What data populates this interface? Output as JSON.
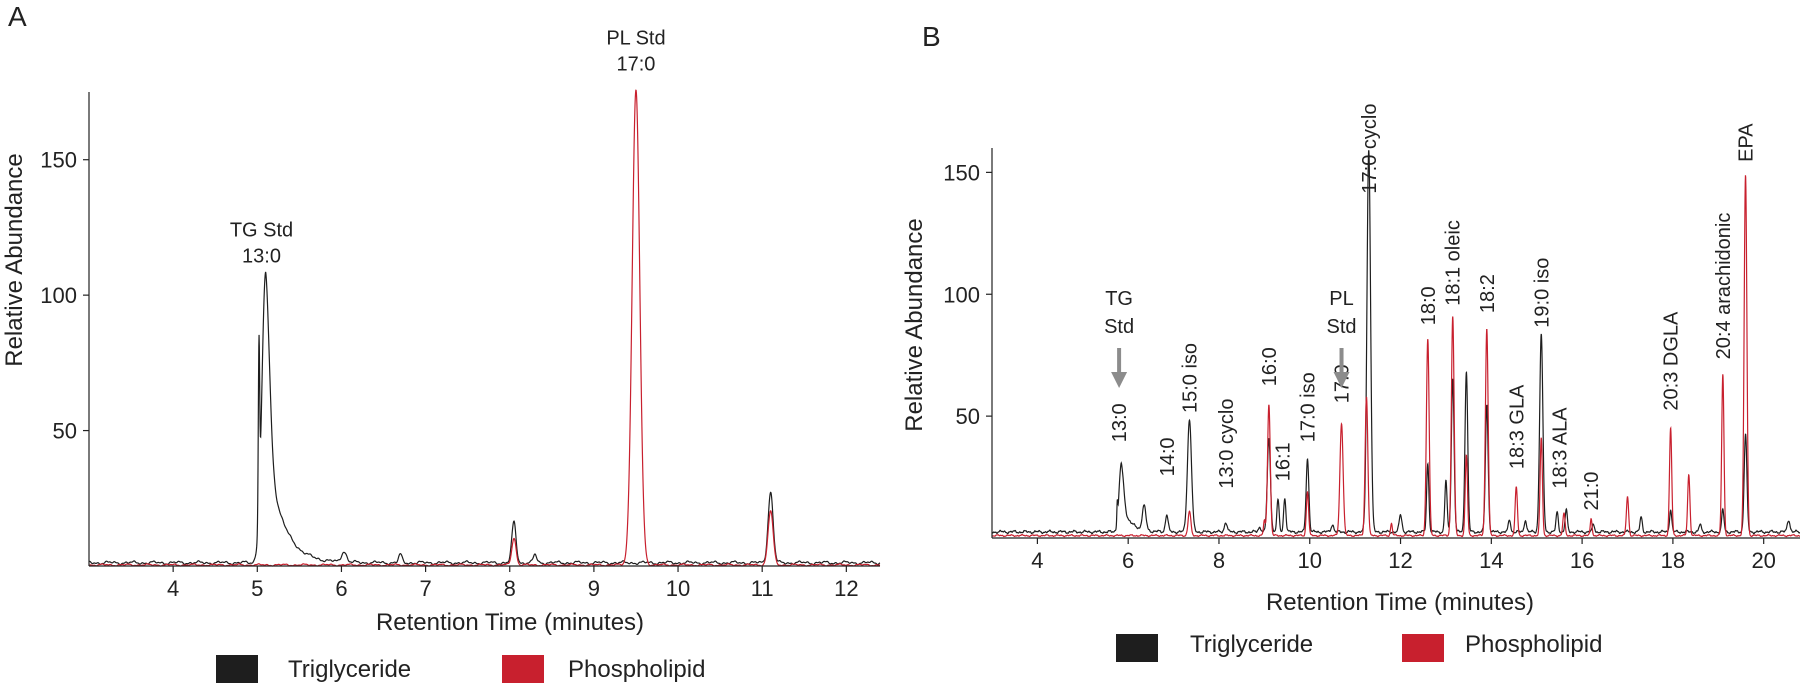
{
  "colors": {
    "triglyceride": "#1e1e1e",
    "phospholipid": "#c8202e",
    "axis": "#222222",
    "arrow": "#8c8c8c"
  },
  "chart_data": [
    {
      "panel": "A",
      "type": "line",
      "xlabel": "Retention Time (minutes)",
      "ylabel": "Relative Abundance",
      "xlim": [
        3.0,
        12.4
      ],
      "ylim": [
        0,
        175
      ],
      "xticks": [
        4,
        5,
        6,
        7,
        8,
        9,
        10,
        11,
        12
      ],
      "yticks": [
        50,
        100,
        150
      ],
      "legend": [
        "Triglyceride",
        "Phospholipid"
      ],
      "annotations": [
        {
          "lines": [
            "TG Std",
            "13:0"
          ],
          "x": 5.05,
          "y": 112
        },
        {
          "lines": [
            "PL Std",
            "17:0"
          ],
          "x": 9.5,
          "y": 183
        }
      ],
      "baseline": {
        "triglyceride": 1.2,
        "phospholipid": 0.4
      },
      "series": [
        {
          "name": "Triglyceride",
          "key": "triglyceride",
          "peaks": [
            {
              "x": 5.02,
              "h": 62,
              "w": 0.008
            },
            {
              "x": 5.1,
              "h": 107,
              "w": 0.045,
              "tail": 0.18
            },
            {
              "x": 6.03,
              "h": 4,
              "w": 0.03
            },
            {
              "x": 6.7,
              "h": 3,
              "w": 0.02
            },
            {
              "x": 8.05,
              "h": 15,
              "w": 0.025
            },
            {
              "x": 8.3,
              "h": 3,
              "w": 0.02
            },
            {
              "x": 11.1,
              "h": 26,
              "w": 0.03
            }
          ]
        },
        {
          "name": "Phospholipid",
          "key": "phospholipid",
          "peaks": [
            {
              "x": 8.05,
              "h": 10,
              "w": 0.025
            },
            {
              "x": 9.5,
              "h": 175,
              "w": 0.045
            },
            {
              "x": 11.1,
              "h": 20,
              "w": 0.03
            }
          ]
        }
      ]
    },
    {
      "panel": "B",
      "type": "line",
      "xlabel": "Retention Time (minutes)",
      "ylabel": "Relative Abundance",
      "xlim": [
        3.0,
        20.8
      ],
      "ylim": [
        0,
        160
      ],
      "xticks": [
        4,
        6,
        8,
        10,
        12,
        14,
        16,
        18,
        20
      ],
      "yticks": [
        50,
        100,
        150
      ],
      "legend": [
        "Triglyceride",
        "Phospholipid"
      ],
      "std_labels": [
        {
          "lines": [
            "TG",
            "Std"
          ],
          "x": 5.8
        },
        {
          "lines": [
            "PL",
            "Std"
          ],
          "x": 10.7
        }
      ],
      "peak_labels": [
        {
          "text": "13:0",
          "x": 5.8,
          "y": 36
        },
        {
          "text": "14:0",
          "x": 6.85,
          "y": 22
        },
        {
          "text": "15:0 iso",
          "x": 7.35,
          "y": 48
        },
        {
          "text": "13:0 cyclo",
          "x": 8.15,
          "y": 17
        },
        {
          "text": "16:0",
          "x": 9.1,
          "y": 59
        },
        {
          "text": "16:1",
          "x": 9.4,
          "y": 20
        },
        {
          "text": "17:0 iso",
          "x": 9.95,
          "y": 36
        },
        {
          "text": "17:0",
          "x": 10.7,
          "y": 52
        },
        {
          "text": "17:0 cyclo",
          "x": 11.3,
          "y": 138
        },
        {
          "text": "18:0",
          "x": 12.6,
          "y": 84
        },
        {
          "text": "18:1 oleic",
          "x": 13.15,
          "y": 92
        },
        {
          "text": "18:2",
          "x": 13.9,
          "y": 89
        },
        {
          "text": "18:3 GLA",
          "x": 14.55,
          "y": 25
        },
        {
          "text": "19:0 iso",
          "x": 15.1,
          "y": 83
        },
        {
          "text": "18:3 ALA",
          "x": 15.5,
          "y": 17
        },
        {
          "text": "21:0",
          "x": 16.2,
          "y": 8
        },
        {
          "text": "20:3 DGLA",
          "x": 17.95,
          "y": 49
        },
        {
          "text": "20:4 arachidonic",
          "x": 19.1,
          "y": 70
        },
        {
          "text": "EPA",
          "x": 19.6,
          "y": 151
        }
      ],
      "baseline": {
        "triglyceride": 2.5,
        "phospholipid": 1.0
      },
      "series": [
        {
          "name": "Triglyceride",
          "key": "triglyceride",
          "peaks": [
            {
              "x": 5.76,
              "h": 8,
              "w": 0.01
            },
            {
              "x": 5.85,
              "h": 28,
              "w": 0.05,
              "tail": 0.18
            },
            {
              "x": 6.35,
              "h": 10,
              "w": 0.04
            },
            {
              "x": 6.85,
              "h": 7,
              "w": 0.03
            },
            {
              "x": 7.35,
              "h": 46,
              "w": 0.045
            },
            {
              "x": 8.15,
              "h": 4,
              "w": 0.03
            },
            {
              "x": 8.9,
              "h": 2,
              "w": 0.03
            },
            {
              "x": 9.1,
              "h": 38,
              "w": 0.035
            },
            {
              "x": 9.3,
              "h": 13,
              "w": 0.025
            },
            {
              "x": 9.45,
              "h": 14,
              "w": 0.025
            },
            {
              "x": 9.95,
              "h": 30,
              "w": 0.03
            },
            {
              "x": 10.5,
              "h": 3,
              "w": 0.03
            },
            {
              "x": 11.3,
              "h": 157,
              "w": 0.04
            },
            {
              "x": 12.0,
              "h": 7,
              "w": 0.03
            },
            {
              "x": 12.6,
              "h": 28,
              "w": 0.025
            },
            {
              "x": 13.0,
              "h": 21,
              "w": 0.025
            },
            {
              "x": 13.15,
              "h": 63,
              "w": 0.03
            },
            {
              "x": 13.45,
              "h": 66,
              "w": 0.03
            },
            {
              "x": 13.9,
              "h": 52,
              "w": 0.03
            },
            {
              "x": 14.4,
              "h": 5,
              "w": 0.025
            },
            {
              "x": 14.75,
              "h": 5,
              "w": 0.025
            },
            {
              "x": 15.1,
              "h": 81,
              "w": 0.035
            },
            {
              "x": 15.45,
              "h": 8,
              "w": 0.025
            },
            {
              "x": 15.65,
              "h": 9,
              "w": 0.025
            },
            {
              "x": 16.25,
              "h": 3,
              "w": 0.025
            },
            {
              "x": 17.3,
              "h": 6,
              "w": 0.025
            },
            {
              "x": 17.95,
              "h": 9,
              "w": 0.025
            },
            {
              "x": 18.6,
              "h": 3,
              "w": 0.025
            },
            {
              "x": 19.1,
              "h": 9,
              "w": 0.025
            },
            {
              "x": 19.6,
              "h": 40,
              "w": 0.03
            },
            {
              "x": 20.55,
              "h": 5,
              "w": 0.03
            }
          ]
        },
        {
          "name": "Phospholipid",
          "key": "phospholipid",
          "peaks": [
            {
              "x": 7.35,
              "h": 10,
              "w": 0.03
            },
            {
              "x": 9.0,
              "h": 6,
              "w": 0.02
            },
            {
              "x": 9.1,
              "h": 54,
              "w": 0.03
            },
            {
              "x": 9.95,
              "h": 18,
              "w": 0.025
            },
            {
              "x": 10.7,
              "h": 46,
              "w": 0.035
            },
            {
              "x": 11.25,
              "h": 57,
              "w": 0.03
            },
            {
              "x": 11.8,
              "h": 5,
              "w": 0.02
            },
            {
              "x": 12.6,
              "h": 81,
              "w": 0.03
            },
            {
              "x": 13.15,
              "h": 90,
              "w": 0.03
            },
            {
              "x": 13.45,
              "h": 33,
              "w": 0.025
            },
            {
              "x": 13.9,
              "h": 85,
              "w": 0.03
            },
            {
              "x": 14.55,
              "h": 20,
              "w": 0.025
            },
            {
              "x": 15.1,
              "h": 40,
              "w": 0.025
            },
            {
              "x": 15.6,
              "h": 9,
              "w": 0.025
            },
            {
              "x": 16.2,
              "h": 7,
              "w": 0.02
            },
            {
              "x": 17.0,
              "h": 16,
              "w": 0.025
            },
            {
              "x": 17.95,
              "h": 44,
              "w": 0.025
            },
            {
              "x": 18.35,
              "h": 25,
              "w": 0.025
            },
            {
              "x": 19.1,
              "h": 66,
              "w": 0.025
            },
            {
              "x": 19.6,
              "h": 148,
              "w": 0.03
            }
          ]
        }
      ]
    }
  ]
}
